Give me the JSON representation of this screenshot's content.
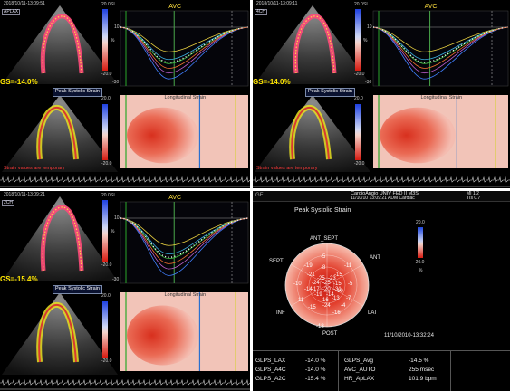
{
  "colors": {
    "positive_strain": "#2d6df6",
    "negative_strain": "#e5322d",
    "avc_marker": "#ffe040",
    "warning": "#ff3a3a",
    "gs": "#ffe600"
  },
  "panels": [
    {
      "timestamp": "2018/10/11-13:09:51",
      "view": "APLAX",
      "gs": "GS=-14.0%",
      "scale_top": "20.0",
      "scale_bottom": "-20.0",
      "sl": "SL",
      "unit": "%",
      "avc": "AVC",
      "curve_y_top": "10",
      "curve_y_bottom": "-30",
      "peak_label": "Peak Systolic Strain",
      "map_title": "Longitudinal Strain",
      "warning": "Strain values are temporary",
      "map_scale_top": "20.0",
      "map_scale_bottom": "-20.0"
    },
    {
      "timestamp": "2018/10/11-13:09:11",
      "view": "4CH",
      "gs": "GS=-14.0%",
      "scale_top": "20.0",
      "scale_bottom": "-20.0",
      "sl": "SL",
      "unit": "%",
      "avc": "AVC",
      "curve_y_top": "10",
      "curve_y_bottom": "-30",
      "peak_label": "Peak Systolic Strain",
      "map_title": "Longitudinal Strain",
      "warning": "Strain values are temporary",
      "map_scale_top": "20.0",
      "map_scale_bottom": "-20.0"
    },
    {
      "timestamp": "2018/10/11-13:09:21",
      "view": "2CH",
      "gs": "GS=-15.4%",
      "scale_top": "20.0",
      "scale_bottom": "-20.0",
      "sl": "SL",
      "unit": "%",
      "avc": "AVC",
      "curve_y_top": "10",
      "curve_y_bottom": "-30",
      "peak_label": "Peak Systolic Strain",
      "map_title": "Longitudinal Strain",
      "map_scale_top": "20.0",
      "map_scale_bottom": "-20.0"
    }
  ],
  "bullseye": {
    "header_line1": "CardioAngio UNIV FED II   M3S",
    "header_line2": "11/10/10 13:09:21    ADM  Cardiac",
    "mi": "MI 1.2",
    "tis": "TIs 0.7",
    "title": "Peak Systolic Strain",
    "scale_top": "20.0",
    "scale_bottom": "-20.0",
    "unit": "%",
    "sectors": {
      "ant_sept": "ANT_SEPT",
      "ant": "ANT",
      "sept": "SEPT",
      "inf": "INF",
      "lat": "LAT",
      "post": "POST"
    },
    "outer": [
      "-5",
      "-11",
      "-19",
      "-10",
      "-11",
      "-7",
      "-5",
      "-18",
      "-16"
    ],
    "mid": [
      "-8",
      "-21",
      "-15",
      "-14",
      "-10",
      "-4",
      "-15",
      "-24"
    ],
    "inner": [
      "-25",
      "-23",
      "-24",
      "-25",
      "-15",
      "-17",
      "-20",
      "-31",
      "-19",
      "-14",
      "-16",
      "-13"
    ],
    "timestamp": "11/10/2010-13:32:24",
    "table": [
      {
        "label": "GLPS_LAX",
        "value": "-14.0 %"
      },
      {
        "label": "GLPS_A4C",
        "value": "-14.0 %"
      },
      {
        "label": "GLPS_A2C",
        "value": "-15.4 %"
      }
    ],
    "table_right": [
      {
        "label": "GLPS_Avg",
        "value": "-14.5 %"
      },
      {
        "label": "AVC_AUTO",
        "value": "255 msec"
      },
      {
        "label": "HR_ApLAX",
        "value": "101.9 bpm"
      }
    ]
  }
}
